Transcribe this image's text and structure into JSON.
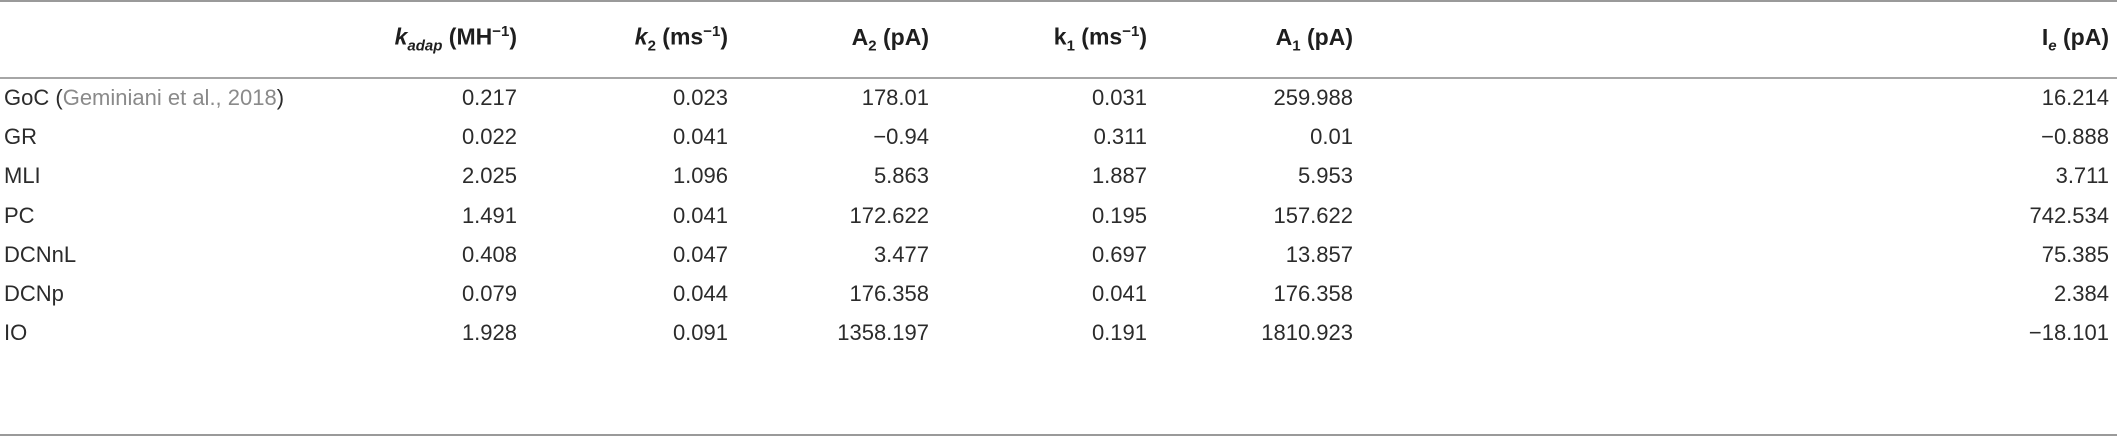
{
  "table": {
    "headers": {
      "kadap": {
        "sym": "k",
        "sub": "adap",
        "unit_pre": " (MH",
        "unit_sup": "−1",
        "unit_post": ")"
      },
      "k2": {
        "sym": "k",
        "sub": "2",
        "unit_pre": " (ms",
        "unit_sup": "−1",
        "unit_post": ")"
      },
      "A2": {
        "sym": "A",
        "sub": "2",
        "unit": " (pA)"
      },
      "k1": {
        "sym": "k",
        "sub": "1",
        "unit_pre": " (ms",
        "unit_sup": "−1",
        "unit_post": ")"
      },
      "A1": {
        "sym": "A",
        "sub": "1",
        "unit": " (pA)"
      },
      "Ie": {
        "sym": "I",
        "sub": "e",
        "unit": " (pA)"
      }
    },
    "rows": [
      {
        "name": "GoC",
        "cite_pre": " (",
        "cite": "Geminiani et al., 2018",
        "cite_post": ")",
        "values": [
          "0.217",
          "0.023",
          "178.01",
          "0.031",
          "259.988",
          "16.214"
        ]
      },
      {
        "name": "GR",
        "values": [
          "0.022",
          "0.041",
          "−0.94",
          "0.311",
          "0.01",
          "−0.888"
        ]
      },
      {
        "name": "MLI",
        "values": [
          "2.025",
          "1.096",
          "5.863",
          "1.887",
          "5.953",
          "3.711"
        ]
      },
      {
        "name": "PC",
        "values": [
          "1.491",
          "0.041",
          "172.622",
          "0.195",
          "157.622",
          "742.534"
        ]
      },
      {
        "name": "DCNnL",
        "values": [
          "0.408",
          "0.047",
          "3.477",
          "0.697",
          "13.857",
          "75.385"
        ]
      },
      {
        "name": "DCNp",
        "values": [
          "0.079",
          "0.044",
          "176.358",
          "0.041",
          "176.358",
          "2.384"
        ]
      },
      {
        "name": "IO",
        "values": [
          "1.928",
          "0.091",
          "1358.197",
          "0.191",
          "1810.923",
          "−18.101"
        ]
      }
    ]
  }
}
